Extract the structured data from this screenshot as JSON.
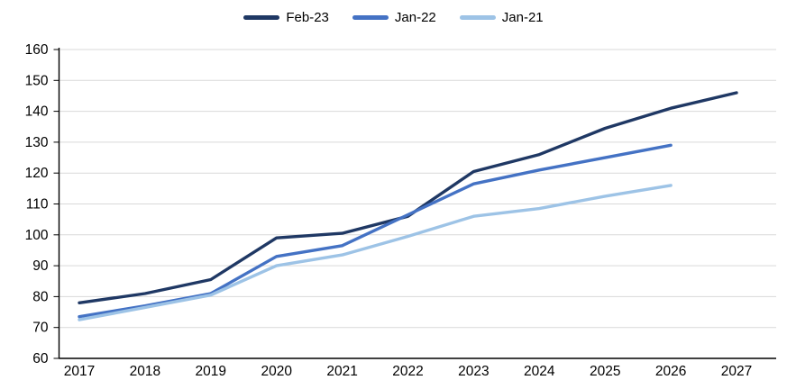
{
  "chart_data": {
    "type": "line",
    "title": "",
    "x": [
      2017,
      2018,
      2019,
      2020,
      2021,
      2022,
      2023,
      2024,
      2025,
      2026,
      2027
    ],
    "series": [
      {
        "name": "Feb-23",
        "color": "#1f3864",
        "values": [
          78,
          81,
          85.5,
          99,
          100.5,
          106,
          120.5,
          126,
          134.5,
          141,
          146
        ]
      },
      {
        "name": "Jan-22",
        "color": "#4472c4",
        "values": [
          73.5,
          77,
          81,
          93,
          96.5,
          106.5,
          116.5,
          121,
          125,
          129,
          null
        ]
      },
      {
        "name": "Jan-21",
        "color": "#9dc3e6",
        "values": [
          72.5,
          76.5,
          80.5,
          90,
          93.5,
          99.5,
          106,
          108.5,
          112.5,
          116,
          null
        ]
      }
    ],
    "xlabel": "",
    "ylabel": "",
    "ylim": [
      60,
      160
    ],
    "ytick_step": 10,
    "grid": true,
    "gridline_color": "#d9d9d9",
    "axis_color": "#000000",
    "legend_position": "top-center"
  }
}
